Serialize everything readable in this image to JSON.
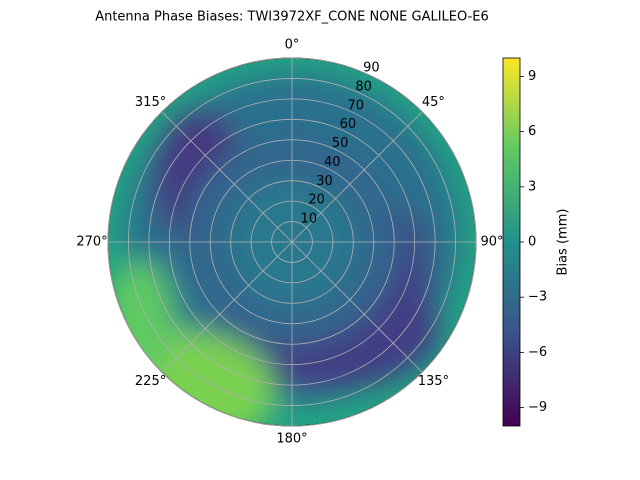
{
  "chart_data": {
    "type": "polar-contour",
    "title": "Antenna Phase Biases: TWI3972XF_CONE  NONE GALILEO-E6",
    "rlim": [
      0,
      90
    ],
    "rticks": [
      10,
      20,
      30,
      40,
      50,
      60,
      70,
      80,
      90
    ],
    "thetaticks": [
      {
        "value": 0,
        "label": "0°"
      },
      {
        "value": 45,
        "label": "45°"
      },
      {
        "value": 90,
        "label": "90°"
      },
      {
        "value": 135,
        "label": "135°"
      },
      {
        "value": 180,
        "label": "180°"
      },
      {
        "value": 225,
        "label": "225°"
      },
      {
        "value": 270,
        "label": "270°"
      },
      {
        "value": 315,
        "label": "315°"
      }
    ],
    "grid": true,
    "colorbar": {
      "label": "Bias (mm)",
      "clim": [
        -10,
        10
      ],
      "ticks": [
        {
          "value": -9,
          "label": "−9"
        },
        {
          "value": -6,
          "label": "−6"
        },
        {
          "value": -3,
          "label": "−3"
        },
        0,
        3,
        6,
        9
      ]
    }
  }
}
